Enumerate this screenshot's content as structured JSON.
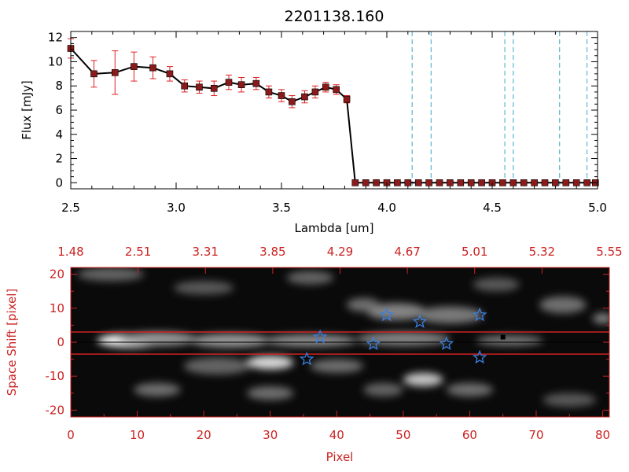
{
  "colors": {
    "spectrum_line": "#000000",
    "error_bar": "#e02020",
    "marker": "#8b1a1a",
    "vline": "#3aa9c9",
    "red_axis": "#cc2222",
    "star": "#3a7fe0",
    "image_bg": "#0a0a0a"
  },
  "chart_data": [
    {
      "type": "line",
      "title": "2201138.160",
      "xlabel": "Lambda [um]",
      "ylabel": "Flux [mJy]",
      "xlim": [
        2.5,
        5.0
      ],
      "ylim": [
        -0.5,
        12.5
      ],
      "xticks": [
        "2.5",
        "3.0",
        "3.5",
        "4.0",
        "4.5",
        "5.0"
      ],
      "yticks": [
        "0",
        "2",
        "4",
        "6",
        "8",
        "10",
        "12"
      ],
      "series": [
        {
          "name": "flux",
          "x": [
            2.5,
            2.61,
            2.71,
            2.8,
            2.89,
            2.97,
            3.04,
            3.11,
            3.18,
            3.25,
            3.31,
            3.38,
            3.44,
            3.5,
            3.55,
            3.61,
            3.66,
            3.71,
            3.76,
            3.81,
            3.85,
            3.9,
            3.95,
            4.0,
            4.05,
            4.1,
            4.15,
            4.2,
            4.25,
            4.3,
            4.35,
            4.4,
            4.45,
            4.5,
            4.55,
            4.6,
            4.65,
            4.7,
            4.75,
            4.8,
            4.85,
            4.9,
            4.95,
            4.99
          ],
          "y": [
            11.1,
            9.0,
            9.1,
            9.6,
            9.5,
            9.0,
            8.0,
            7.9,
            7.8,
            8.3,
            8.1,
            8.2,
            7.5,
            7.2,
            6.7,
            7.1,
            7.5,
            7.9,
            7.7,
            6.9,
            0.0,
            0.0,
            0.0,
            0.0,
            0.0,
            0.0,
            0.0,
            0.0,
            0.0,
            0.0,
            0.0,
            0.0,
            0.0,
            0.0,
            0.0,
            0.0,
            0.0,
            0.0,
            0.0,
            0.0,
            0.0,
            0.0,
            0.0,
            0.0
          ],
          "yerr": [
            0.8,
            1.1,
            1.8,
            1.2,
            0.9,
            0.6,
            0.5,
            0.5,
            0.6,
            0.6,
            0.6,
            0.5,
            0.5,
            0.5,
            0.5,
            0.5,
            0.5,
            0.4,
            0.4,
            0.3,
            0,
            0,
            0,
            0,
            0,
            0,
            0,
            0,
            0,
            0,
            0,
            0,
            0,
            0,
            0,
            0,
            0,
            0,
            0,
            0,
            0,
            0,
            0,
            0
          ]
        }
      ],
      "vlines": [
        4.12,
        4.21,
        4.56,
        4.6,
        4.82,
        4.95
      ]
    },
    {
      "type": "heatmap",
      "xlabel": "Pixel",
      "ylabel": "Space Shift [pixel]",
      "xlim": [
        0,
        81
      ],
      "ylim": [
        -22,
        22
      ],
      "xticks": [
        "0",
        "10",
        "20",
        "30",
        "40",
        "50",
        "60",
        "70",
        "80"
      ],
      "yticks": [
        "-20",
        "-10",
        "0",
        "10",
        "20"
      ],
      "top_axis_ticks": [
        "1.48",
        "2.51",
        "3.31",
        "3.85",
        "4.29",
        "4.67",
        "5.01",
        "5.32",
        "5.55"
      ],
      "red_lines_y": [
        3,
        -3.5
      ],
      "blobs": [
        {
          "x": 9,
          "y": 0.5,
          "w": 10,
          "h": 4,
          "v": 1.0
        },
        {
          "x": 13,
          "y": 1,
          "w": 12,
          "h": 4,
          "v": 0.55
        },
        {
          "x": 24,
          "y": 0.5,
          "w": 12,
          "h": 4,
          "v": 0.55
        },
        {
          "x": 36,
          "y": 0.5,
          "w": 14,
          "h": 3.5,
          "v": 0.5
        },
        {
          "x": 50,
          "y": 1,
          "w": 14,
          "h": 4,
          "v": 0.45
        },
        {
          "x": 66,
          "y": 0.5,
          "w": 10,
          "h": 3,
          "v": 0.4
        },
        {
          "x": 30,
          "y": -6,
          "w": 7,
          "h": 4,
          "v": 0.85
        },
        {
          "x": 22,
          "y": -7,
          "w": 10,
          "h": 5,
          "v": 0.3
        },
        {
          "x": 40,
          "y": -7,
          "w": 8,
          "h": 4,
          "v": 0.35
        },
        {
          "x": 49,
          "y": 9,
          "w": 9,
          "h": 5,
          "v": 0.45
        },
        {
          "x": 57,
          "y": 8,
          "w": 10,
          "h": 5,
          "v": 0.4
        },
        {
          "x": 44,
          "y": 11,
          "w": 5,
          "h": 4,
          "v": 0.35
        },
        {
          "x": 74,
          "y": 11,
          "w": 7,
          "h": 5,
          "v": 0.35
        },
        {
          "x": 80,
          "y": 7,
          "w": 3,
          "h": 3,
          "v": 0.45
        },
        {
          "x": 53,
          "y": -11,
          "w": 6,
          "h": 4,
          "v": 0.75
        },
        {
          "x": 13,
          "y": -14,
          "w": 7,
          "h": 4,
          "v": 0.35
        },
        {
          "x": 30,
          "y": -15,
          "w": 7,
          "h": 4,
          "v": 0.35
        },
        {
          "x": 60,
          "y": -14,
          "w": 7,
          "h": 4,
          "v": 0.35
        },
        {
          "x": 47,
          "y": -14,
          "w": 6,
          "h": 4,
          "v": 0.3
        },
        {
          "x": 6,
          "y": 20,
          "w": 10,
          "h": 4,
          "v": 0.3
        },
        {
          "x": 36,
          "y": 19,
          "w": 7,
          "h": 4,
          "v": 0.3
        },
        {
          "x": 20,
          "y": 16,
          "w": 9,
          "h": 4,
          "v": 0.25
        },
        {
          "x": 64,
          "y": 17,
          "w": 7,
          "h": 4,
          "v": 0.25
        },
        {
          "x": 75,
          "y": -17,
          "w": 8,
          "h": 4,
          "v": 0.25
        }
      ],
      "stars": [
        {
          "x": 37.5,
          "y": 1.5
        },
        {
          "x": 47.5,
          "y": 8
        },
        {
          "x": 52.5,
          "y": 6
        },
        {
          "x": 61.5,
          "y": 8
        },
        {
          "x": 35.5,
          "y": -5
        },
        {
          "x": 45.5,
          "y": -0.5
        },
        {
          "x": 56.5,
          "y": -0.5
        },
        {
          "x": 61.5,
          "y": -4.5
        }
      ]
    }
  ]
}
